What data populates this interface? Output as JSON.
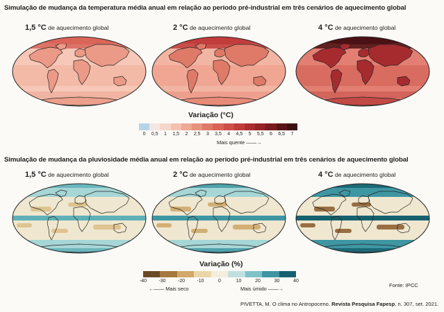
{
  "temperature": {
    "title": "Simulação de mudança da temperatura média anual em relação ao período pré-industrial em três cenários de aquecimento global",
    "maps": [
      {
        "bold": "1,5 °C",
        "rest": " de aquecimento global",
        "intensity": 0.3
      },
      {
        "bold": "2 °C",
        "rest": " de aquecimento global",
        "intensity": 0.5
      },
      {
        "bold": "4 °C",
        "rest": " de aquecimento global",
        "intensity": 0.9
      }
    ],
    "legend": {
      "title": "Variação (°C)",
      "ticks": [
        "0",
        "0,5",
        "1",
        "1,5",
        "2",
        "2,5",
        "3",
        "3,5",
        "4",
        "4,5",
        "5",
        "5,5",
        "6",
        "6,5",
        "7"
      ],
      "colors": [
        "#b7d5ea",
        "#f4e7e2",
        "#f8d6ca",
        "#f4c1b1",
        "#efa995",
        "#e8917c",
        "#e07a68",
        "#d86458",
        "#cd4f48",
        "#c03c3b",
        "#ac2d30",
        "#952226",
        "#7a1b1f",
        "#5a1417",
        "#3e0e10"
      ],
      "arrow_label": "Mais quente"
    }
  },
  "precipitation": {
    "title": "Simulação de mudança da pluviosidade média anual em relação ao período pré-industrial em três cenários de aquecimento global",
    "maps": [
      {
        "bold": "1,5 °C",
        "rest": " de aquecimento global",
        "intensity": 0.35
      },
      {
        "bold": "2 °C",
        "rest": " de aquecimento global",
        "intensity": 0.5
      },
      {
        "bold": "4 °C",
        "rest": " de aquecimento global",
        "intensity": 0.9
      }
    ],
    "legend": {
      "title": "Variação (%)",
      "ticks": [
        "-40",
        "-30",
        "-20",
        "-10",
        "0",
        "10",
        "20",
        "30",
        "40"
      ],
      "colors": [
        "#6b4a25",
        "#a6783f",
        "#cfa86a",
        "#ead6a8",
        "#f4eedd",
        "#bfe0df",
        "#7ec2c8",
        "#3f96a3",
        "#16616f"
      ],
      "dry_label": "Mais seco",
      "wet_label": "Mais úmido"
    }
  },
  "source": "Fonte: IPCC",
  "citation": {
    "plain": "PIVETTA, M. O clima no Antropoceno. ",
    "journal": "Revista Pesquisa Fapesp",
    "tail": ", n. 307, set. 2021."
  }
}
